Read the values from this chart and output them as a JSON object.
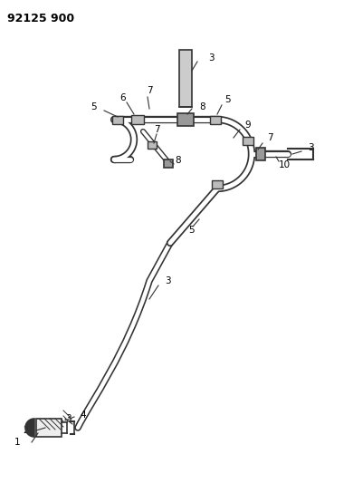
{
  "title": "92125 900",
  "bg_color": "#ffffff",
  "line_color": "#333333",
  "label_color": "#000000",
  "title_fontsize": 9,
  "label_fontsize": 7.5
}
